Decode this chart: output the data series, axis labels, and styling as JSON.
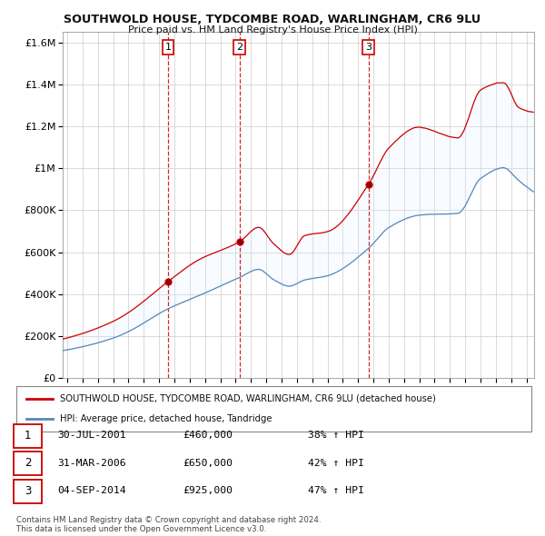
{
  "title": "SOUTHWOLD HOUSE, TYDCOMBE ROAD, WARLINGHAM, CR6 9LU",
  "subtitle": "Price paid vs. HM Land Registry's House Price Index (HPI)",
  "red_label": "SOUTHWOLD HOUSE, TYDCOMBE ROAD, WARLINGHAM, CR6 9LU (detached house)",
  "blue_label": "HPI: Average price, detached house, Tandridge",
  "sales": [
    {
      "num": 1,
      "date": "30-JUL-2001",
      "date_year": 2001.58,
      "price": 460000,
      "pct": "38% ↑ HPI"
    },
    {
      "num": 2,
      "date": "31-MAR-2006",
      "date_year": 2006.25,
      "price": 650000,
      "pct": "42% ↑ HPI"
    },
    {
      "num": 3,
      "date": "04-SEP-2014",
      "date_year": 2014.67,
      "price": 925000,
      "pct": "47% ↑ HPI"
    }
  ],
  "footer": "Contains HM Land Registry data © Crown copyright and database right 2024.\nThis data is licensed under the Open Government Licence v3.0.",
  "ylim": [
    0,
    1650000
  ],
  "yticks": [
    0,
    200000,
    400000,
    600000,
    800000,
    1000000,
    1200000,
    1400000,
    1600000
  ],
  "xlim_start": 1994.7,
  "xlim_end": 2025.5,
  "red_color": "#cc0000",
  "blue_color": "#5588bb",
  "fill_color": "#ddeeff",
  "dashed_color": "#cc0000",
  "bg_color": "#ffffff",
  "grid_color": "#cccccc"
}
